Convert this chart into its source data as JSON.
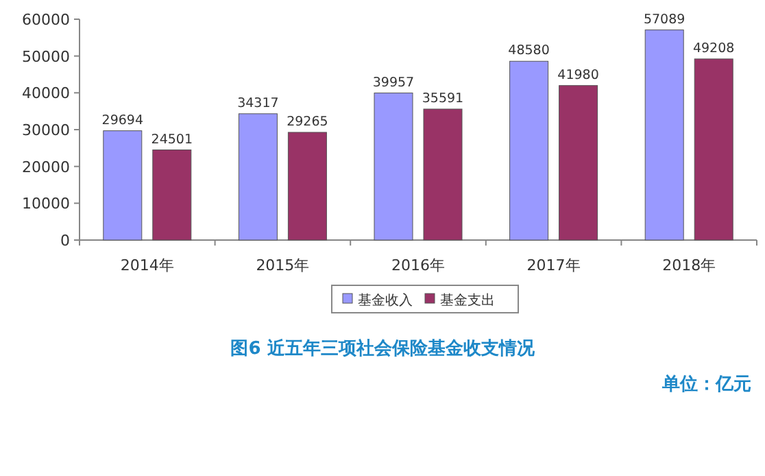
{
  "chart_data": {
    "type": "bar",
    "title": "图6  近五年三项社会保险基金收支情况",
    "annotations": [
      "单位：亿元"
    ],
    "categories": [
      "2014年",
      "2015年",
      "2016年",
      "2017年",
      "2018年"
    ],
    "series": [
      {
        "name": "基金收入",
        "color": "#9999ff",
        "values": [
          29694,
          34317,
          39957,
          48580,
          57089
        ]
      },
      {
        "name": "基金支出",
        "color": "#993366",
        "values": [
          24501,
          29265,
          35591,
          41980,
          49208
        ]
      }
    ],
    "ylim": [
      0,
      60000
    ],
    "yticks": [
      0,
      10000,
      20000,
      30000,
      40000,
      50000,
      60000
    ],
    "data_labels": true,
    "legend": "bottom"
  }
}
